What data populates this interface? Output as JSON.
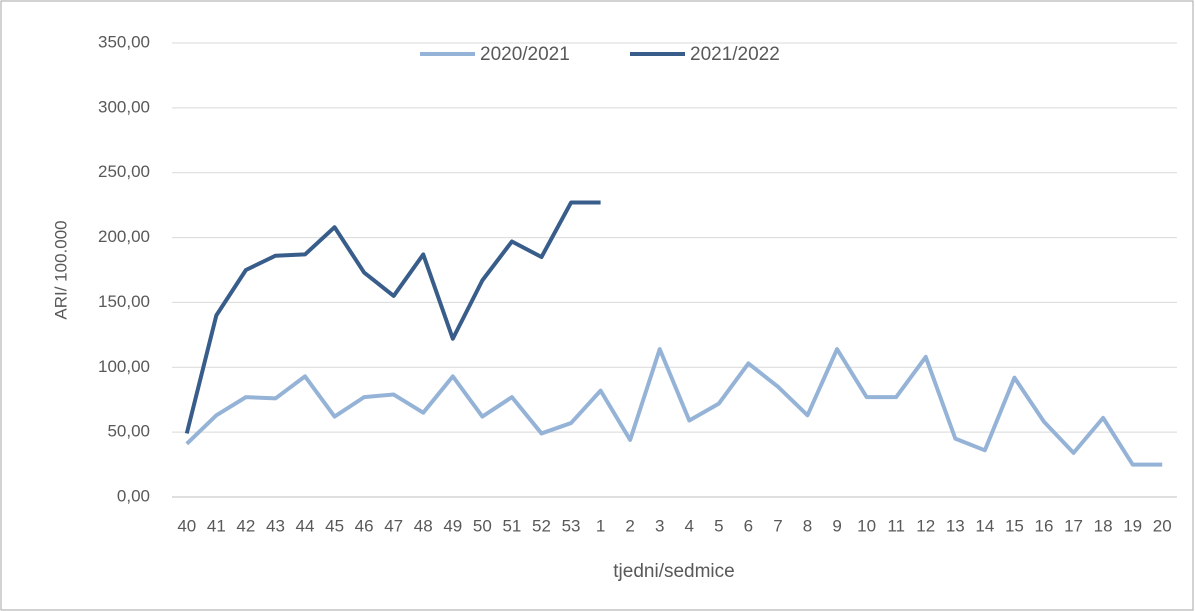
{
  "chart_data": {
    "type": "line",
    "ylabel": "ARI/ 100.000",
    "xlabel": "tjedni/sedmice",
    "categories": [
      "40",
      "41",
      "42",
      "43",
      "44",
      "45",
      "46",
      "47",
      "48",
      "49",
      "50",
      "51",
      "52",
      "53",
      "1",
      "2",
      "3",
      "4",
      "5",
      "6",
      "7",
      "8",
      "9",
      "10",
      "11",
      "12",
      "13",
      "14",
      "15",
      "16",
      "17",
      "18",
      "19",
      "20"
    ],
    "series": [
      {
        "name": "2020/2021",
        "color": "#95b3d7",
        "values": [
          41,
          63,
          77,
          76,
          93,
          62,
          77,
          79,
          65,
          93,
          62,
          77,
          49,
          57,
          82,
          44,
          114,
          59,
          72,
          103,
          85,
          63,
          114,
          77,
          77,
          108,
          45,
          36,
          92,
          58,
          34,
          61,
          25,
          25
        ]
      },
      {
        "name": "2021/2022",
        "color": "#385d8a",
        "values": [
          49,
          140,
          175,
          186,
          187,
          208,
          173,
          155,
          187,
          122,
          167,
          197,
          185,
          227,
          227,
          null,
          null,
          null,
          null,
          null,
          null,
          null,
          null,
          null,
          null,
          null,
          null,
          null,
          null,
          null,
          null,
          null,
          null,
          null
        ]
      }
    ],
    "ylim": [
      0,
      350
    ],
    "yticks": [
      {
        "value": 0,
        "label": "0,00"
      },
      {
        "value": 50,
        "label": "50,00"
      },
      {
        "value": 100,
        "label": "100,00"
      },
      {
        "value": 150,
        "label": "150,00"
      },
      {
        "value": 200,
        "label": "200,00"
      },
      {
        "value": 250,
        "label": "250,00"
      },
      {
        "value": 300,
        "label": "300,00"
      },
      {
        "value": 350,
        "label": "350,00"
      }
    ],
    "grid": true,
    "legend": "top"
  }
}
